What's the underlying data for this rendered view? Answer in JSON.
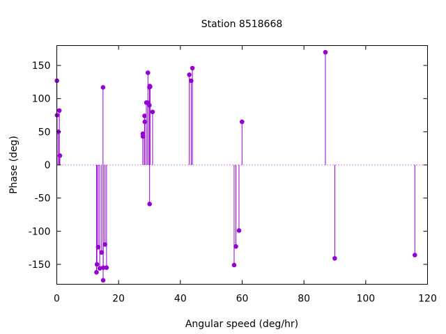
{
  "chart_data": {
    "type": "scatter",
    "title": "Station 8518668",
    "xlabel": "Angular speed (deg/hr)",
    "ylabel": "Phase (deg)",
    "xlim": [
      0,
      120
    ],
    "ylim": [
      -180,
      180
    ],
    "x_ticks": [
      0,
      20,
      40,
      60,
      80,
      100,
      120
    ],
    "y_ticks": [
      -150,
      -100,
      -50,
      0,
      50,
      100,
      150
    ],
    "x_tick_labels": [
      "0",
      "20",
      "40",
      "60",
      "80",
      "100",
      "120"
    ],
    "y_tick_labels": [
      "-150",
      "-100",
      "-50",
      "0",
      "50",
      "100",
      "150"
    ],
    "style": "impulses with points",
    "zero_line": "dotted",
    "grid": false,
    "color": "#9400d3",
    "points": [
      {
        "x": 0.04,
        "y": 127
      },
      {
        "x": 0.08,
        "y": 75
      },
      {
        "x": 0.54,
        "y": 50
      },
      {
        "x": 0.82,
        "y": 82
      },
      {
        "x": 1.0,
        "y": 14
      },
      {
        "x": 12.85,
        "y": -162
      },
      {
        "x": 13.0,
        "y": -150
      },
      {
        "x": 13.4,
        "y": -124
      },
      {
        "x": 13.9,
        "y": -156
      },
      {
        "x": 14.5,
        "y": -132
      },
      {
        "x": 14.96,
        "y": 117
      },
      {
        "x": 15.0,
        "y": -174
      },
      {
        "x": 15.04,
        "y": -155
      },
      {
        "x": 15.6,
        "y": -120
      },
      {
        "x": 16.1,
        "y": -155
      },
      {
        "x": 27.85,
        "y": 47
      },
      {
        "x": 27.9,
        "y": 43
      },
      {
        "x": 28.4,
        "y": 74
      },
      {
        "x": 28.5,
        "y": 65
      },
      {
        "x": 28.98,
        "y": 94
      },
      {
        "x": 29.46,
        "y": 94
      },
      {
        "x": 29.5,
        "y": 139
      },
      {
        "x": 29.96,
        "y": 90
      },
      {
        "x": 30.0,
        "y": 117
      },
      {
        "x": 30.04,
        "y": -59
      },
      {
        "x": 30.1,
        "y": 119
      },
      {
        "x": 30.2,
        "y": 118
      },
      {
        "x": 31.0,
        "y": 80
      },
      {
        "x": 42.9,
        "y": 136
      },
      {
        "x": 43.5,
        "y": 127
      },
      {
        "x": 43.9,
        "y": 146
      },
      {
        "x": 57.4,
        "y": -151
      },
      {
        "x": 57.97,
        "y": -123
      },
      {
        "x": 58.98,
        "y": -99
      },
      {
        "x": 59.95,
        "y": 65
      },
      {
        "x": 86.95,
        "y": 170
      },
      {
        "x": 89.97,
        "y": -141
      },
      {
        "x": 115.9,
        "y": -136
      }
    ]
  }
}
